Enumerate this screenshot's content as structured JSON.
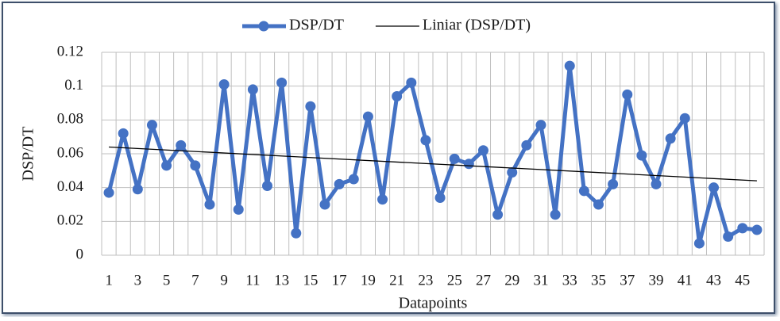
{
  "chart_data": {
    "type": "line",
    "x_label": "Datapoints",
    "y_label": "DSP/DT",
    "x": [
      1,
      2,
      3,
      4,
      5,
      6,
      7,
      8,
      9,
      10,
      11,
      12,
      13,
      14,
      15,
      16,
      17,
      18,
      19,
      20,
      21,
      22,
      23,
      24,
      25,
      26,
      27,
      28,
      29,
      30,
      31,
      32,
      33,
      34,
      35,
      36,
      37,
      38,
      39,
      40,
      41,
      42,
      43,
      44,
      45,
      46
    ],
    "xlim": [
      0.5,
      46.5
    ],
    "xticks": [
      1,
      3,
      5,
      7,
      9,
      11,
      13,
      15,
      17,
      19,
      21,
      23,
      25,
      27,
      29,
      31,
      33,
      35,
      37,
      39,
      41,
      43,
      45
    ],
    "ylim": [
      0,
      0.12
    ],
    "yticks": [
      0,
      0.02,
      0.04,
      0.06,
      0.08,
      0.1,
      0.12
    ],
    "grid": true,
    "legend": "top",
    "series": [
      {
        "name": "DSP/DT",
        "color": "#4472c4",
        "values": [
          0.037,
          0.072,
          0.039,
          0.077,
          0.053,
          0.065,
          0.053,
          0.03,
          0.101,
          0.027,
          0.098,
          0.041,
          0.102,
          0.013,
          0.088,
          0.03,
          0.042,
          0.045,
          0.082,
          0.033,
          0.094,
          0.102,
          0.068,
          0.034,
          0.057,
          0.054,
          0.062,
          0.024,
          0.049,
          0.065,
          0.077,
          0.024,
          0.112,
          0.038,
          0.03,
          0.042,
          0.095,
          0.059,
          0.042,
          0.069,
          0.081,
          0.007,
          0.04,
          0.011,
          0.016,
          0.015
        ]
      },
      {
        "name": "Liniar (DSP/DT)",
        "color": "#000000",
        "x": [
          1,
          46
        ],
        "values": [
          0.064,
          0.044
        ]
      }
    ]
  }
}
